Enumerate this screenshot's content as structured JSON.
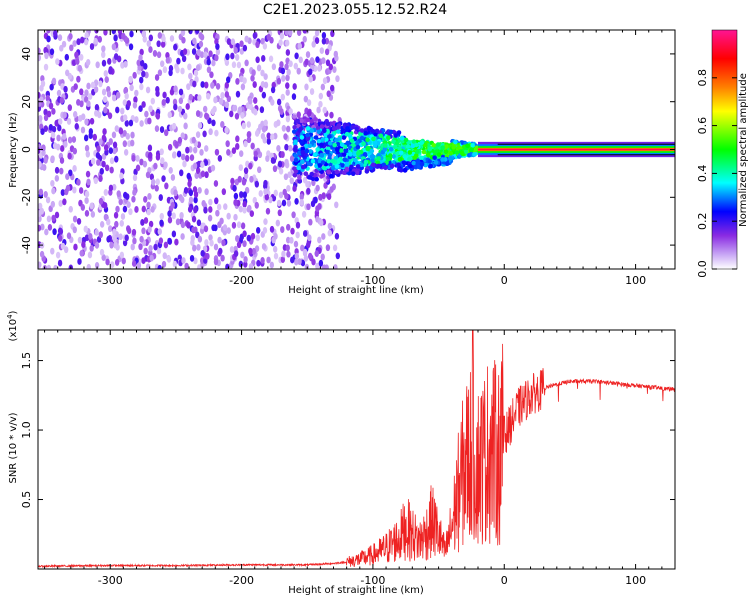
{
  "title": "C2E1.2023.055.12.52.R24",
  "chart_data": [
    {
      "type": "heatmap",
      "xlabel": "Height of straight line (km)",
      "ylabel": "Frequency (Hz)",
      "xlim": [
        -355,
        130
      ],
      "ylim": [
        -50,
        50
      ],
      "xticks": [
        -300,
        -200,
        -100,
        0,
        100
      ],
      "yticks": [
        -40,
        -20,
        0,
        20,
        40
      ],
      "xtick_labels": [
        "-300",
        "-200",
        "-100",
        "0",
        "100"
      ],
      "ytick_labels": [
        "-40",
        "-20",
        "0",
        "20",
        "40"
      ],
      "colorbar": {
        "label": "Normalized spectral amplitude",
        "range": [
          0,
          1
        ],
        "ticks": [
          0.0,
          0.2,
          0.4,
          0.6,
          0.8
        ],
        "tick_labels": [
          "0.0",
          "0.2",
          "0.4",
          "0.6",
          "0.8"
        ],
        "colors": [
          "#ffffff",
          "#8a2be2",
          "#0000ff",
          "#00ffff",
          "#00ff00",
          "#ffff00",
          "#ff8000",
          "#ff0000",
          "#ff1493"
        ]
      },
      "features": {
        "noise_region_km": [
          -355,
          -130
        ],
        "noise_band_hz": [
          -50,
          50
        ],
        "convergence_region_km": [
          -160,
          -20
        ],
        "carrier_line_hz": 0,
        "carrier_line_start_km": -20
      }
    },
    {
      "type": "line",
      "xlabel": "Height of straight line (km)",
      "ylabel": "SNR (10 * v/v)",
      "y_multiplier": "(x10",
      "y_multiplier_exp": "4",
      "y_multiplier_close": ")",
      "xlim": [
        -355,
        130
      ],
      "ylim": [
        0,
        1.72
      ],
      "xticks": [
        -300,
        -200,
        -100,
        0,
        100
      ],
      "yticks": [
        0.5,
        1.0,
        1.5
      ],
      "xtick_labels": [
        "-300",
        "-200",
        "-100",
        "0",
        "100"
      ],
      "ytick_labels": [
        "0.5",
        "1.0",
        "1.5"
      ],
      "color": "#ee2222",
      "series": [
        {
          "x": [
            -355,
            -300,
            -250,
            -200,
            -150,
            -130,
            -120,
            -110,
            -100,
            -90,
            -80,
            -75,
            -70,
            -65,
            -60,
            -55,
            -50,
            -45,
            -40,
            -35,
            -30,
            -25,
            -20,
            -15,
            -10,
            -5,
            0,
            5,
            10,
            20,
            30,
            40,
            50,
            60,
            70,
            80,
            90,
            100,
            110,
            120,
            130
          ],
          "y": [
            0.02,
            0.025,
            0.025,
            0.03,
            0.03,
            0.04,
            0.05,
            0.07,
            0.1,
            0.15,
            0.22,
            0.3,
            0.25,
            0.2,
            0.25,
            0.35,
            0.25,
            0.12,
            0.3,
            0.55,
            0.75,
            0.85,
            0.75,
            0.8,
            0.9,
            0.8,
            0.95,
            1.05,
            1.15,
            1.25,
            1.3,
            1.33,
            1.35,
            1.35,
            1.35,
            1.34,
            1.33,
            1.32,
            1.31,
            1.3,
            1.29
          ]
        }
      ]
    }
  ]
}
